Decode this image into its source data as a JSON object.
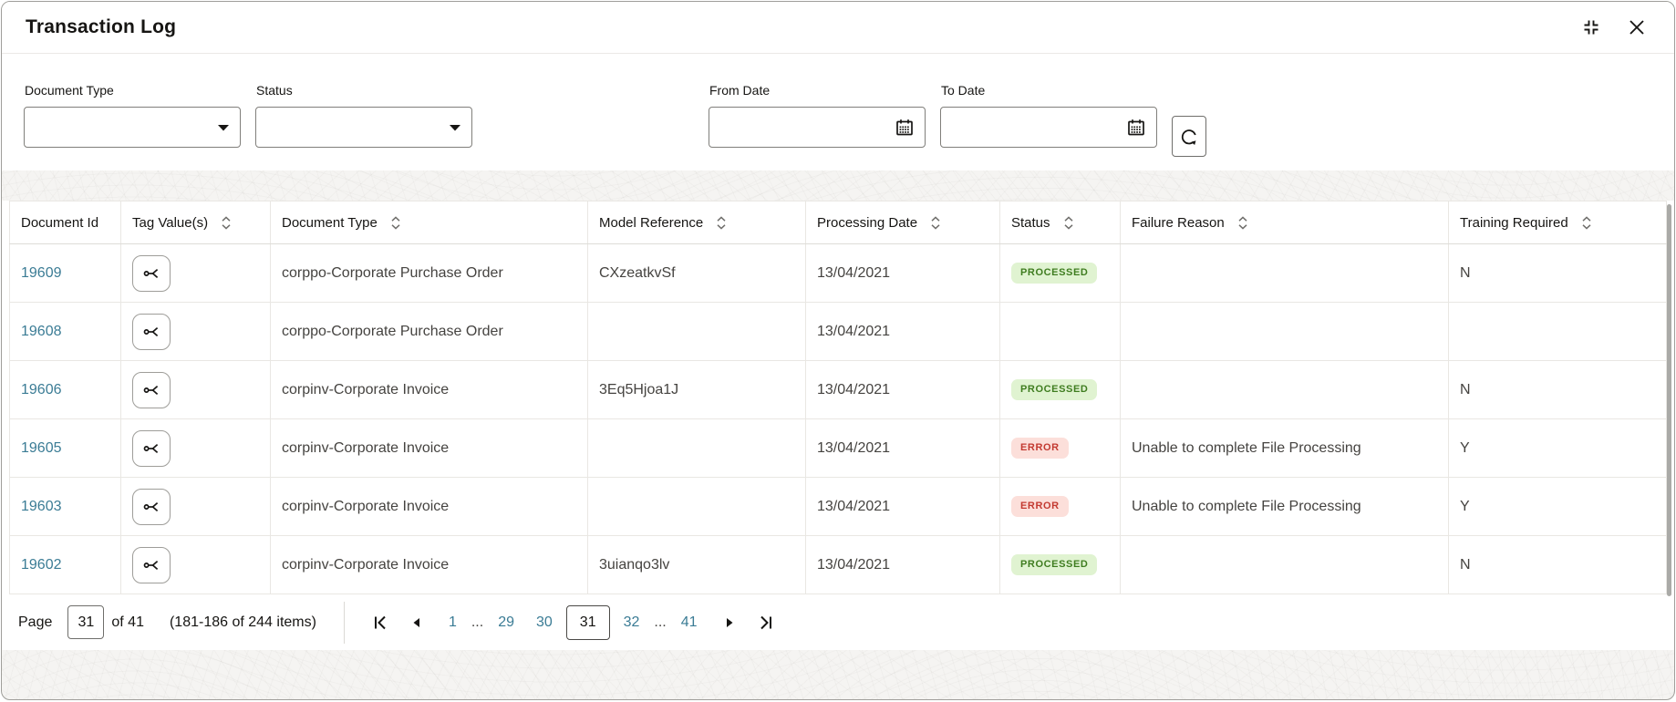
{
  "dialog": {
    "title": "Transaction Log"
  },
  "filters": {
    "document_type": {
      "label": "Document Type",
      "value": ""
    },
    "status": {
      "label": "Status",
      "value": ""
    },
    "from_date": {
      "label": "From Date",
      "value": ""
    },
    "to_date": {
      "label": "To Date",
      "value": ""
    }
  },
  "table": {
    "columns": [
      {
        "label": "Document Id",
        "sortable": false
      },
      {
        "label": "Tag Value(s)",
        "sortable": true
      },
      {
        "label": "Document Type",
        "sortable": true
      },
      {
        "label": "Model Reference",
        "sortable": true
      },
      {
        "label": "Processing Date",
        "sortable": true
      },
      {
        "label": "Status",
        "sortable": true
      },
      {
        "label": "Failure Reason",
        "sortable": true
      },
      {
        "label": "Training Required",
        "sortable": true
      }
    ],
    "rows": [
      {
        "document_id": "19609",
        "document_type": "corppo-Corporate Purchase Order",
        "model_reference": "CXzeatkvSf",
        "processing_date": "13/04/2021",
        "status": "PROCESSED",
        "failure_reason": "",
        "training_required": "N"
      },
      {
        "document_id": "19608",
        "document_type": "corppo-Corporate Purchase Order",
        "model_reference": "",
        "processing_date": "13/04/2021",
        "status": "",
        "failure_reason": "",
        "training_required": ""
      },
      {
        "document_id": "19606",
        "document_type": "corpinv-Corporate Invoice",
        "model_reference": "3Eq5Hjoa1J",
        "processing_date": "13/04/2021",
        "status": "PROCESSED",
        "failure_reason": "",
        "training_required": "N"
      },
      {
        "document_id": "19605",
        "document_type": "corpinv-Corporate Invoice",
        "model_reference": "",
        "processing_date": "13/04/2021",
        "status": "ERROR",
        "failure_reason": "Unable to complete File Processing",
        "training_required": "Y"
      },
      {
        "document_id": "19603",
        "document_type": "corpinv-Corporate Invoice",
        "model_reference": "",
        "processing_date": "13/04/2021",
        "status": "ERROR",
        "failure_reason": "Unable to complete File Processing",
        "training_required": "Y"
      },
      {
        "document_id": "19602",
        "document_type": "corpinv-Corporate Invoice",
        "model_reference": "3uianqo3lv",
        "processing_date": "13/04/2021",
        "status": "PROCESSED",
        "failure_reason": "",
        "training_required": "N"
      }
    ]
  },
  "pagination": {
    "page_label": "Page",
    "current_page": "31",
    "of_label": "of 41",
    "items_summary": "(181-186 of 244 items)",
    "pages": [
      {
        "label": "1",
        "type": "link"
      },
      {
        "label": "...",
        "type": "ellipsis"
      },
      {
        "label": "29",
        "type": "link"
      },
      {
        "label": "30",
        "type": "link"
      },
      {
        "label": "31",
        "type": "current"
      },
      {
        "label": "32",
        "type": "link"
      },
      {
        "label": "...",
        "type": "ellipsis"
      },
      {
        "label": "41",
        "type": "link"
      }
    ]
  },
  "colors": {
    "link": "#3b7c95",
    "status_processed_bg": "#e0f3d1",
    "status_processed_text": "#3f7d20",
    "status_error_bg": "#fcdfda",
    "status_error_text": "#c33a31"
  }
}
